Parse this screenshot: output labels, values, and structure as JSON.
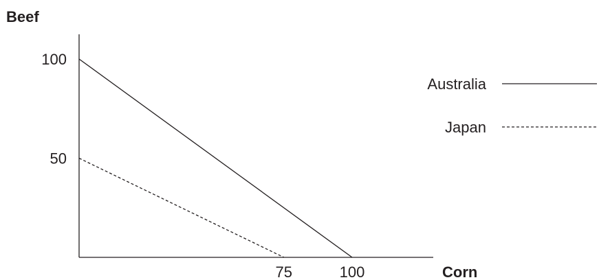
{
  "chart_data": {
    "type": "line",
    "xlabel": "Corn",
    "ylabel": "Beef",
    "xlim": [
      0,
      150
    ],
    "ylim": [
      0,
      114
    ],
    "x_ticks": [
      75,
      100
    ],
    "y_ticks": [
      50,
      100
    ],
    "grid": false,
    "legend_position": "right",
    "series": [
      {
        "name": "Australia",
        "line_style": "solid",
        "color": "#231f20",
        "points": [
          [
            0,
            100
          ],
          [
            100,
            0
          ]
        ]
      },
      {
        "name": "Japan",
        "line_style": "dashed",
        "color": "#231f20",
        "points": [
          [
            0,
            50
          ],
          [
            75,
            0
          ]
        ]
      }
    ]
  }
}
